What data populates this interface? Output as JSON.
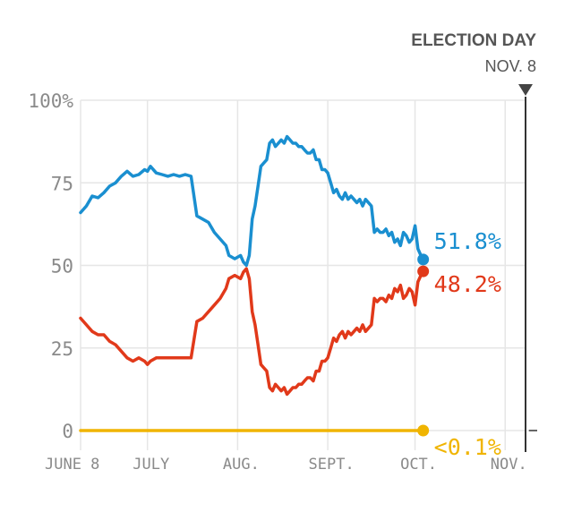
{
  "header": {
    "title": "ELECTION DAY",
    "subtitle": "NOV. 8"
  },
  "chart_data": {
    "type": "line",
    "title": "",
    "xlabel": "",
    "ylabel": "",
    "xlim": [
      0,
      153
    ],
    "ylim": [
      0,
      100
    ],
    "y_ticks": [
      {
        "value": 0,
        "label": "0"
      },
      {
        "value": 25,
        "label": "25"
      },
      {
        "value": 50,
        "label": "50"
      },
      {
        "value": 75,
        "label": "75"
      },
      {
        "value": 100,
        "label": "100%"
      }
    ],
    "x_ticks": [
      {
        "value": 0,
        "label": "JUNE 8"
      },
      {
        "value": 23,
        "label": "JULY"
      },
      {
        "value": 54,
        "label": "AUG."
      },
      {
        "value": 85,
        "label": "SEPT."
      },
      {
        "value": 115,
        "label": "OCT."
      },
      {
        "value": 146,
        "label": "NOV."
      }
    ],
    "election_day_x": 153,
    "grid": true,
    "series": [
      {
        "color": "#1a8fd0",
        "end_label": "51.8%",
        "points": [
          [
            0,
            66
          ],
          [
            2,
            68
          ],
          [
            4,
            71
          ],
          [
            6,
            70.5
          ],
          [
            8,
            72
          ],
          [
            10,
            74
          ],
          [
            12,
            75
          ],
          [
            14,
            77
          ],
          [
            16,
            78.5
          ],
          [
            18,
            77
          ],
          [
            20,
            77.5
          ],
          [
            22,
            79
          ],
          [
            23,
            78.5
          ],
          [
            24,
            80
          ],
          [
            26,
            78
          ],
          [
            28,
            77.5
          ],
          [
            30,
            77
          ],
          [
            32,
            77.5
          ],
          [
            34,
            77
          ],
          [
            36,
            77.5
          ],
          [
            38,
            77
          ],
          [
            40,
            65
          ],
          [
            42,
            64
          ],
          [
            44,
            63
          ],
          [
            46,
            60
          ],
          [
            48,
            58
          ],
          [
            50,
            56
          ],
          [
            51,
            53
          ],
          [
            53,
            52
          ],
          [
            55,
            53
          ],
          [
            56,
            51
          ],
          [
            57,
            50
          ],
          [
            58,
            53
          ],
          [
            59,
            64
          ],
          [
            60,
            68
          ],
          [
            61,
            74
          ],
          [
            62,
            80
          ],
          [
            63,
            81
          ],
          [
            64,
            82
          ],
          [
            65,
            87
          ],
          [
            66,
            88
          ],
          [
            67,
            86
          ],
          [
            68,
            87
          ],
          [
            69,
            88
          ],
          [
            70,
            87
          ],
          [
            71,
            89
          ],
          [
            72,
            88
          ],
          [
            73,
            87
          ],
          [
            74,
            87
          ],
          [
            75,
            86
          ],
          [
            76,
            86
          ],
          [
            77,
            85
          ],
          [
            78,
            84
          ],
          [
            79,
            84
          ],
          [
            80,
            85
          ],
          [
            81,
            82
          ],
          [
            82,
            82
          ],
          [
            83,
            79
          ],
          [
            84,
            79
          ],
          [
            85,
            78
          ],
          [
            86,
            75
          ],
          [
            87,
            72
          ],
          [
            88,
            73
          ],
          [
            89,
            71
          ],
          [
            90,
            70
          ],
          [
            91,
            72
          ],
          [
            92,
            70
          ],
          [
            93,
            71
          ],
          [
            94,
            70
          ],
          [
            95,
            69
          ],
          [
            96,
            70
          ],
          [
            97,
            68
          ],
          [
            98,
            70
          ],
          [
            99,
            69
          ],
          [
            100,
            68
          ],
          [
            101,
            60
          ],
          [
            102,
            61
          ],
          [
            103,
            60
          ],
          [
            104,
            60
          ],
          [
            105,
            61
          ],
          [
            106,
            59
          ],
          [
            107,
            60
          ],
          [
            108,
            57
          ],
          [
            109,
            58
          ],
          [
            110,
            56
          ],
          [
            111,
            60
          ],
          [
            112,
            59
          ],
          [
            113,
            57
          ],
          [
            114,
            58
          ],
          [
            115,
            62
          ],
          [
            116,
            55
          ],
          [
            117,
            53
          ],
          [
            117.8,
            51.8
          ]
        ]
      },
      {
        "color": "#e1391a",
        "end_label": "48.2%",
        "points": [
          [
            0,
            34
          ],
          [
            2,
            32
          ],
          [
            4,
            30
          ],
          [
            6,
            29
          ],
          [
            8,
            29
          ],
          [
            10,
            27
          ],
          [
            12,
            26
          ],
          [
            14,
            24
          ],
          [
            16,
            22
          ],
          [
            18,
            21
          ],
          [
            20,
            22
          ],
          [
            22,
            21
          ],
          [
            23,
            20
          ],
          [
            24,
            21
          ],
          [
            26,
            22
          ],
          [
            28,
            22
          ],
          [
            30,
            22
          ],
          [
            32,
            22
          ],
          [
            34,
            22
          ],
          [
            36,
            22
          ],
          [
            38,
            22
          ],
          [
            40,
            33
          ],
          [
            42,
            34
          ],
          [
            44,
            36
          ],
          [
            46,
            38
          ],
          [
            48,
            40
          ],
          [
            50,
            43
          ],
          [
            51,
            46
          ],
          [
            53,
            47
          ],
          [
            55,
            46
          ],
          [
            56,
            48
          ],
          [
            57,
            49
          ],
          [
            58,
            46
          ],
          [
            59,
            36
          ],
          [
            60,
            32
          ],
          [
            61,
            26
          ],
          [
            62,
            20
          ],
          [
            63,
            19
          ],
          [
            64,
            18
          ],
          [
            65,
            13
          ],
          [
            66,
            12
          ],
          [
            67,
            14
          ],
          [
            68,
            13
          ],
          [
            69,
            12
          ],
          [
            70,
            13
          ],
          [
            71,
            11
          ],
          [
            72,
            12
          ],
          [
            73,
            13
          ],
          [
            74,
            13
          ],
          [
            75,
            14
          ],
          [
            76,
            14
          ],
          [
            77,
            15
          ],
          [
            78,
            16
          ],
          [
            79,
            16
          ],
          [
            80,
            15
          ],
          [
            81,
            18
          ],
          [
            82,
            18
          ],
          [
            83,
            21
          ],
          [
            84,
            21
          ],
          [
            85,
            22
          ],
          [
            86,
            25
          ],
          [
            87,
            28
          ],
          [
            88,
            27
          ],
          [
            89,
            29
          ],
          [
            90,
            30
          ],
          [
            91,
            28
          ],
          [
            92,
            30
          ],
          [
            93,
            29
          ],
          [
            94,
            30
          ],
          [
            95,
            31
          ],
          [
            96,
            30
          ],
          [
            97,
            32
          ],
          [
            98,
            30
          ],
          [
            99,
            31
          ],
          [
            100,
            32
          ],
          [
            101,
            40
          ],
          [
            102,
            39
          ],
          [
            103,
            40
          ],
          [
            104,
            40
          ],
          [
            105,
            39
          ],
          [
            106,
            41
          ],
          [
            107,
            40
          ],
          [
            108,
            43
          ],
          [
            109,
            42
          ],
          [
            110,
            44
          ],
          [
            111,
            40
          ],
          [
            112,
            41
          ],
          [
            113,
            43
          ],
          [
            114,
            42
          ],
          [
            115,
            38
          ],
          [
            116,
            45
          ],
          [
            117,
            47
          ],
          [
            117.8,
            48.2
          ]
        ]
      },
      {
        "color": "#f0b400",
        "end_label": "<0.1%",
        "points": [
          [
            0,
            0
          ],
          [
            117.8,
            0
          ]
        ]
      }
    ]
  }
}
